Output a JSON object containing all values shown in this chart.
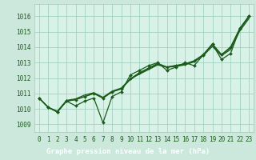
{
  "title": "Graphe pression niveau de la mer (hPa)",
  "bg_color": "#cce8dc",
  "plot_bg_color": "#d8f2e8",
  "line_color": "#1a5c1a",
  "label_bar_color": "#2d6e2d",
  "label_text_color": "#ffffff",
  "xlim": [
    -0.5,
    23.5
  ],
  "ylim": [
    1008.5,
    1016.8
  ],
  "yticks": [
    1009,
    1010,
    1011,
    1012,
    1013,
    1014,
    1015,
    1016
  ],
  "xticks": [
    0,
    1,
    2,
    3,
    4,
    5,
    6,
    7,
    8,
    9,
    10,
    11,
    12,
    13,
    14,
    15,
    16,
    17,
    18,
    19,
    20,
    21,
    22,
    23
  ],
  "series1": [
    1010.7,
    1010.1,
    1009.8,
    1010.5,
    1010.2,
    1010.5,
    1010.7,
    1009.1,
    1010.8,
    1011.1,
    1012.2,
    1012.5,
    1012.8,
    1013.0,
    1012.5,
    1012.7,
    1013.0,
    1012.8,
    1013.5,
    1014.2,
    1013.2,
    1013.6,
    1015.2,
    1016.0
  ],
  "series2": [
    1010.7,
    1010.1,
    1009.85,
    1010.55,
    1010.65,
    1010.9,
    1011.05,
    1010.75,
    1011.15,
    1011.35,
    1011.95,
    1012.25,
    1012.55,
    1012.85,
    1012.7,
    1012.75,
    1012.85,
    1013.05,
    1013.45,
    1014.05,
    1013.45,
    1013.85,
    1015.05,
    1015.85
  ],
  "series3": [
    1010.7,
    1010.1,
    1009.8,
    1010.5,
    1010.6,
    1010.8,
    1011.0,
    1010.7,
    1011.1,
    1011.3,
    1011.9,
    1012.3,
    1012.6,
    1012.9,
    1012.7,
    1012.8,
    1012.9,
    1013.1,
    1013.5,
    1014.15,
    1013.5,
    1013.95,
    1015.15,
    1015.95
  ],
  "series4": [
    1010.7,
    1010.1,
    1009.8,
    1010.5,
    1010.6,
    1010.8,
    1011.0,
    1010.7,
    1011.1,
    1011.3,
    1011.95,
    1012.35,
    1012.65,
    1012.95,
    1012.72,
    1012.82,
    1012.92,
    1013.12,
    1013.52,
    1014.22,
    1013.52,
    1014.02,
    1015.22,
    1016.02
  ],
  "grid_color": "#99ccbb",
  "font_color": "#1a5c1a",
  "tick_font_size": 5.5,
  "xlabel_font_size": 6.5
}
